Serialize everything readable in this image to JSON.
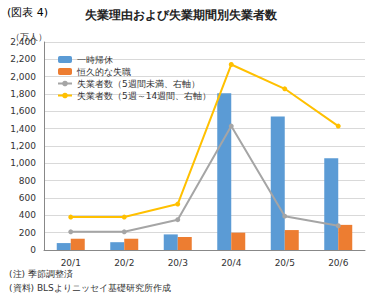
{
  "chart_data": {
    "type": "bar",
    "figure_label": "(図表 4)",
    "title": "失業理由および失業期間別失業者数",
    "y_label": "（万人）",
    "annotations": [
      "(注) 季節調整済",
      "(資料) BLSよりニッセイ基礎研究所作成"
    ],
    "categories": [
      "20/1",
      "20/2",
      "20/3",
      "20/4",
      "20/5",
      "20/6"
    ],
    "series": [
      {
        "name": "一時帰休",
        "type": "bar",
        "color": "#5b9bd5",
        "values": [
          80,
          90,
          180,
          1810,
          1540,
          1060
        ]
      },
      {
        "name": "恒久的な失職",
        "type": "bar",
        "color": "#ed7d31",
        "values": [
          130,
          130,
          150,
          200,
          230,
          290
        ]
      },
      {
        "name": "失業者数（5週間未満、右軸）",
        "type": "line",
        "color": "#a5a5a5",
        "marker": "circle",
        "values": [
          210,
          210,
          350,
          1430,
          390,
          280
        ]
      },
      {
        "name": "失業者数（5週～14週間、右軸）",
        "type": "line",
        "color": "#ffc000",
        "marker": "circle",
        "values": [
          380,
          380,
          530,
          2140,
          1860,
          1430
        ]
      }
    ],
    "ylim": [
      0,
      2400
    ],
    "yticks": [
      0,
      200,
      400,
      600,
      800,
      {
        "value": 1000,
        "label": "1,000"
      },
      {
        "value": 1200,
        "label": "1,200"
      },
      {
        "value": 1400,
        "label": "1,400"
      },
      {
        "value": 1600,
        "label": "1,600"
      },
      {
        "value": 1800,
        "label": "1,800"
      },
      {
        "value": 2000,
        "label": "2,000"
      },
      {
        "value": 2200,
        "label": "2,200"
      },
      {
        "value": 2400,
        "label": "2,400"
      }
    ],
    "grid": true,
    "legend": "upper left"
  }
}
